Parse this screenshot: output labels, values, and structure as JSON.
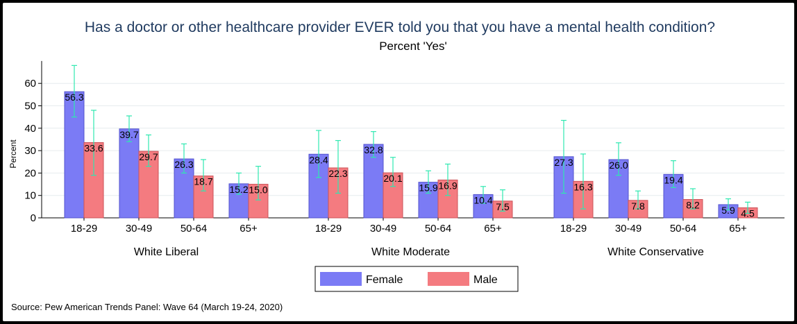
{
  "chart_data": {
    "type": "bar",
    "title": "Has a doctor or other healthcare provider EVER told you that you have a mental health condition?",
    "subtitle": "Percent 'Yes'",
    "ylabel": "Percent",
    "ylim": [
      0,
      70
    ],
    "yticks": [
      0,
      10,
      20,
      30,
      40,
      50,
      60
    ],
    "grid": true,
    "legend_position": "bottom-center",
    "source": "Source: Pew American Trends Panel: Wave 64 (March 19-24, 2020)",
    "series_meta": [
      {
        "name": "Female",
        "color": "#7b7bf5"
      },
      {
        "name": "Male",
        "color": "#f47b80"
      }
    ],
    "error_bar_color": "#2ee8b0",
    "groups": [
      {
        "label": "White Liberal",
        "categories": [
          {
            "label": "18-29",
            "values": [
              56.3,
              33.6
            ],
            "ci": [
              [
                45,
                68
              ],
              [
                19,
                48
              ]
            ]
          },
          {
            "label": "30-49",
            "values": [
              39.7,
              29.7
            ],
            "ci": [
              [
                34,
                45.5
              ],
              [
                23,
                37
              ]
            ]
          },
          {
            "label": "50-64",
            "values": [
              26.3,
              18.7
            ],
            "ci": [
              [
                20,
                33
              ],
              [
                12,
                26
              ]
            ]
          },
          {
            "label": "65+",
            "values": [
              15.2,
              15.0
            ],
            "ci": [
              [
                10.5,
                20
              ],
              [
                8,
                23
              ]
            ]
          }
        ]
      },
      {
        "label": "White Moderate",
        "categories": [
          {
            "label": "18-29",
            "values": [
              28.4,
              22.3
            ],
            "ci": [
              [
                18,
                39
              ],
              [
                11,
                34.5
              ]
            ]
          },
          {
            "label": "30-49",
            "values": [
              32.8,
              20.1
            ],
            "ci": [
              [
                27,
                38.5
              ],
              [
                14,
                27
              ]
            ]
          },
          {
            "label": "50-64",
            "values": [
              15.9,
              16.9
            ],
            "ci": [
              [
                11,
                21
              ],
              [
                10,
                24
              ]
            ]
          },
          {
            "label": "65+",
            "values": [
              10.4,
              7.5
            ],
            "ci": [
              [
                6.5,
                14
              ],
              [
                3,
                12.5
              ]
            ]
          }
        ]
      },
      {
        "label": "White Conservative",
        "categories": [
          {
            "label": "18-29",
            "values": [
              27.3,
              16.3
            ],
            "ci": [
              [
                11,
                43.5
              ],
              [
                4,
                28.5
              ]
            ]
          },
          {
            "label": "30-49",
            "values": [
              26.0,
              7.8
            ],
            "ci": [
              [
                19,
                33.5
              ],
              [
                4,
                12
              ]
            ]
          },
          {
            "label": "50-64",
            "values": [
              19.4,
              8.2
            ],
            "ci": [
              [
                13.5,
                25.5
              ],
              [
                4,
                13
              ]
            ]
          },
          {
            "label": "65+",
            "values": [
              5.9,
              4.5
            ],
            "ci": [
              [
                3.5,
                8.5
              ],
              [
                2,
                7
              ]
            ]
          }
        ]
      }
    ]
  }
}
